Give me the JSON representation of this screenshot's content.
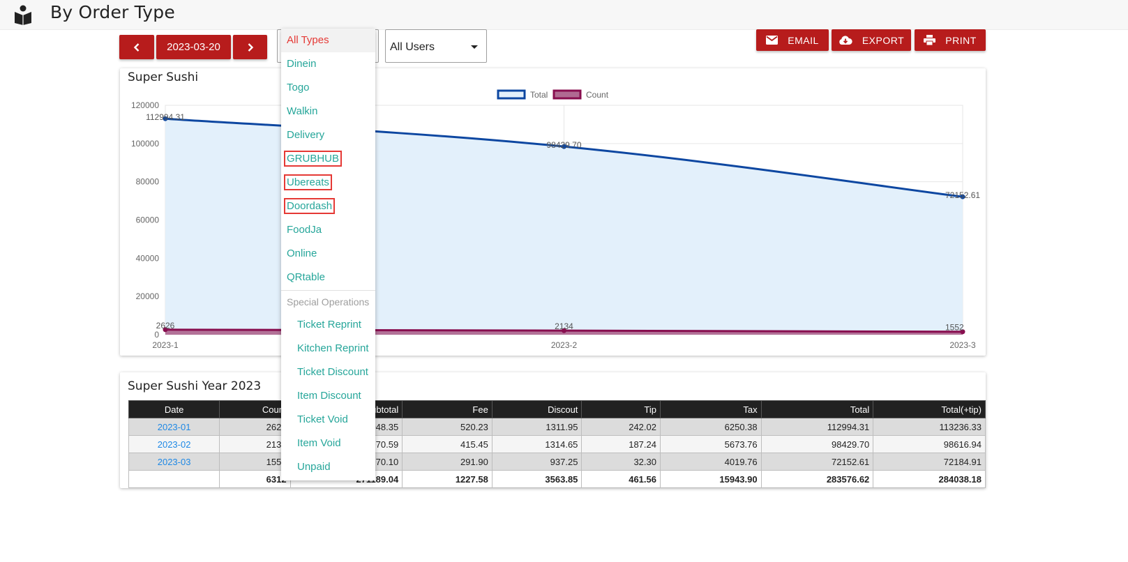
{
  "header": {
    "title": "By Order Type",
    "logo_icon": "book-reader-icon"
  },
  "toolbar": {
    "prev_icon": "chevron-left-icon",
    "date": "2023-03-20",
    "next_icon": "chevron-right-icon",
    "type_select": "All Types",
    "user_select": "All Users",
    "email_label": "EMAIL",
    "export_label": "EXPORT",
    "print_label": "PRINT",
    "accent_color": "#b71c1c"
  },
  "dropdown": {
    "items": [
      {
        "label": "All Types",
        "selected": true
      },
      {
        "label": "Dinein"
      },
      {
        "label": "Togo"
      },
      {
        "label": "Walkin"
      },
      {
        "label": "Delivery"
      },
      {
        "label": "GRUBHUB",
        "boxed": true
      },
      {
        "label": "Ubereats",
        "boxed": true
      },
      {
        "label": "Doordash",
        "boxed": true
      },
      {
        "label": "FoodJa"
      },
      {
        "label": "Online"
      },
      {
        "label": "QRtable"
      }
    ],
    "group_header": "Special Operations",
    "special_items": [
      "Ticket Reprint",
      "Kitchen Reprint",
      "Ticket Discount",
      "Item Discount",
      "Ticket Void",
      "Item Void",
      "Unpaid"
    ]
  },
  "chart_card": {
    "title": "Super Sushi"
  },
  "chart_data": {
    "type": "area",
    "x": [
      "2023-1",
      "2023-2",
      "2023-3"
    ],
    "series": [
      {
        "name": "Total",
        "values": [
          112994.31,
          98429.7,
          72152.61
        ],
        "labels": [
          "112994.31",
          "98429.70",
          "72152.61"
        ],
        "color": "#0d47a1",
        "fill": "#e3f0fb"
      },
      {
        "name": "Count",
        "values": [
          2626,
          2134,
          1552
        ],
        "labels": [
          "2626",
          "2134",
          "1552"
        ],
        "color": "#880e4f",
        "fill": "#b06a92"
      }
    ],
    "ylim": [
      0,
      120000
    ],
    "yticks": [
      "0",
      "20000",
      "40000",
      "60000",
      "80000",
      "100000",
      "120000"
    ],
    "legend": "top-center",
    "grid": true
  },
  "table_card": {
    "title": "Super Sushi Year 2023",
    "headers": [
      "Date",
      "Count",
      "Subtotal",
      "Fee",
      "Discout",
      "Tip",
      "Tax",
      "Total",
      "Total(+tip)"
    ],
    "rows": [
      [
        "2023-01",
        "2626",
        "108048.35",
        "520.23",
        "1311.95",
        "242.02",
        "6250.38",
        "112994.31",
        "113236.33"
      ],
      [
        "2023-02",
        "2134",
        "94070.59",
        "415.45",
        "1314.65",
        "187.24",
        "5673.76",
        "98429.70",
        "98616.94"
      ],
      [
        "2023-03",
        "1552",
        "69070.10",
        "291.90",
        "937.25",
        "32.30",
        "4019.76",
        "72152.61",
        "72184.91"
      ]
    ],
    "totals": [
      "",
      "6312",
      "271189.04",
      "1227.58",
      "3563.85",
      "461.56",
      "15943.90",
      "283576.62",
      "284038.18"
    ]
  }
}
